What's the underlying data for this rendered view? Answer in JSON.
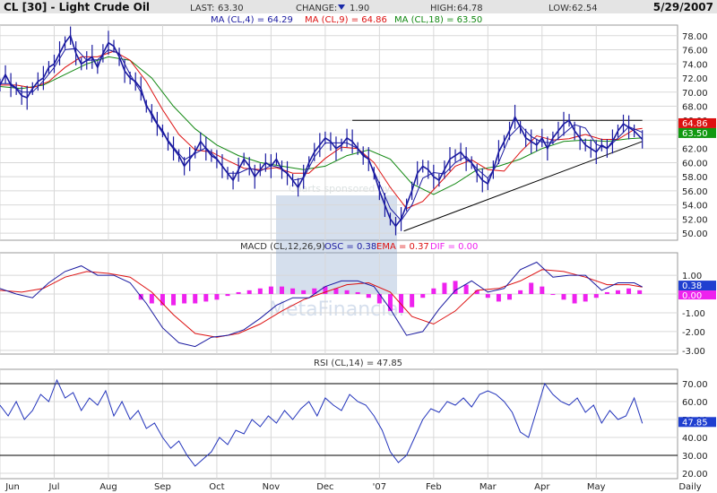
{
  "header": {
    "symbol_title": "CL [30] - Light Crude Oil",
    "last_label": "LAST:",
    "last_value": "63.30",
    "change_label": "CHANGE:",
    "change_value": "1.90",
    "change_direction": "down",
    "high_label": "HIGH:",
    "high_value": "64.78",
    "low_label": "LOW:",
    "low_value": "62.54",
    "date": "5/29/2007"
  },
  "watermark": {
    "sponsor_text": "Charts sponsored by:",
    "brand_text": "MetaFinancial"
  },
  "colors": {
    "background": "#ffffff",
    "grid": "#d8d8d8",
    "price": "#1a1aa0",
    "ma4": "#1a1aa0",
    "ma9": "#dd1111",
    "ma18": "#118811",
    "macd_hist": "#ee22ee",
    "rsi": "#2233bb",
    "tag_ma4": "#1f3fd0",
    "tag_ma9": "#dd1111",
    "tag_ma18": "#119911"
  },
  "chart_data": [
    {
      "type": "line",
      "panel": "price",
      "legend": {
        "ma4_text": "MA (CL,4) = 64.29",
        "ma9_text": "MA (CL,9) = 64.86",
        "ma18_text": "MA (CL,18) = 63.50"
      },
      "value_tags": {
        "ma4": "64.29",
        "ma9": "64.86",
        "ma18": "63.50"
      },
      "ylim": [
        49,
        79.5
      ],
      "y_ticks": [
        "50.00",
        "52.00",
        "54.00",
        "56.00",
        "58.00",
        "60.00",
        "62.00",
        "64.00",
        "66.00",
        "68.00",
        "70.00",
        "72.00",
        "74.00",
        "76.00",
        "78.00"
      ],
      "x_labels": [
        "Jun",
        "Jul",
        "Aug",
        "Sep",
        "Oct",
        "Nov",
        "Dec",
        "'07",
        "Feb",
        "Mar",
        "Apr",
        "May",
        "Daily"
      ],
      "x_label_months": [
        0,
        1,
        2,
        3,
        4,
        5,
        6,
        7,
        8,
        9,
        10,
        11,
        12.5
      ],
      "xlim": [
        0,
        12.5
      ],
      "grid": true,
      "series": [
        {
          "key": "price",
          "x": [
            0,
            0.1,
            0.2,
            0.3,
            0.4,
            0.5,
            0.6,
            0.7,
            0.8,
            0.9,
            1.0,
            1.1,
            1.2,
            1.3,
            1.4,
            1.5,
            1.6,
            1.7,
            1.8,
            1.9,
            2.0,
            2.1,
            2.2,
            2.3,
            2.4,
            2.5,
            2.6,
            2.7,
            2.8,
            2.9,
            3.0,
            3.1,
            3.2,
            3.3,
            3.4,
            3.5,
            3.6,
            3.7,
            3.8,
            3.9,
            4.0,
            4.1,
            4.2,
            4.3,
            4.4,
            4.5,
            4.6,
            4.7,
            4.8,
            4.9,
            5.0,
            5.1,
            5.2,
            5.3,
            5.4,
            5.5,
            5.6,
            5.7,
            5.8,
            5.9,
            6.0,
            6.1,
            6.2,
            6.3,
            6.4,
            6.5,
            6.6,
            6.7,
            6.8,
            6.9,
            7.0,
            7.1,
            7.2,
            7.3,
            7.4,
            7.5,
            7.6,
            7.7,
            7.8,
            7.9,
            8.0,
            8.1,
            8.2,
            8.3,
            8.4,
            8.5,
            8.6,
            8.7,
            8.8,
            8.9,
            9.0,
            9.1,
            9.2,
            9.3,
            9.4,
            9.5,
            9.6,
            9.7,
            9.8,
            9.9,
            10.0,
            10.1,
            10.2,
            10.3,
            10.4,
            10.5,
            10.6,
            10.7,
            10.8,
            10.9,
            11.0,
            11.1,
            11.2,
            11.3,
            11.4,
            11.5,
            11.6,
            11.7,
            11.85
          ],
          "y": [
            71.0,
            72.5,
            71.0,
            70.5,
            69.5,
            69.2,
            70.5,
            71.5,
            72.0,
            73.5,
            74.0,
            75.5,
            77.0,
            78.0,
            75.5,
            74.0,
            74.5,
            75.0,
            73.5,
            75.5,
            77.0,
            76.5,
            75.0,
            73.0,
            72.0,
            71.5,
            70.5,
            68.0,
            67.0,
            65.5,
            64.5,
            63.0,
            62.0,
            61.0,
            59.5,
            60.5,
            61.5,
            63.0,
            62.0,
            61.0,
            60.5,
            59.5,
            58.5,
            57.5,
            59.0,
            60.5,
            59.5,
            58.0,
            59.0,
            60.0,
            59.5,
            60.5,
            59.0,
            58.5,
            57.5,
            56.5,
            58.0,
            60.0,
            61.5,
            62.5,
            63.5,
            63.0,
            62.0,
            62.5,
            63.5,
            63.0,
            62.0,
            61.0,
            60.5,
            58.5,
            56.0,
            54.0,
            52.0,
            51.0,
            52.0,
            54.0,
            56.0,
            58.5,
            59.5,
            59.0,
            58.0,
            57.5,
            59.0,
            60.5,
            61.0,
            61.5,
            60.5,
            60.0,
            58.5,
            57.5,
            57.0,
            59.0,
            61.5,
            63.0,
            64.5,
            66.5,
            65.0,
            63.5,
            63.0,
            62.5,
            63.5,
            62.0,
            63.5,
            64.5,
            65.5,
            66.0,
            64.5,
            63.5,
            62.5,
            62.0,
            61.5,
            62.5,
            62.0,
            63.0,
            64.5,
            65.5,
            65.0,
            64.5,
            63.3
          ]
        },
        {
          "key": "ma4",
          "x": [
            0,
            0.2,
            0.4,
            0.6,
            0.8,
            1.0,
            1.2,
            1.4,
            1.6,
            1.8,
            2.0,
            2.2,
            2.4,
            2.6,
            2.8,
            3.0,
            3.2,
            3.4,
            3.6,
            3.8,
            4.0,
            4.2,
            4.4,
            4.6,
            4.8,
            5.0,
            5.2,
            5.4,
            5.6,
            5.8,
            6.0,
            6.2,
            6.4,
            6.6,
            6.8,
            7.0,
            7.2,
            7.4,
            7.6,
            7.8,
            8.0,
            8.2,
            8.4,
            8.6,
            8.8,
            9.0,
            9.2,
            9.4,
            9.6,
            9.8,
            10.0,
            10.2,
            10.4,
            10.6,
            10.8,
            11.0,
            11.2,
            11.4,
            11.6,
            11.85
          ],
          "y": [
            71.2,
            71.2,
            70.0,
            70.0,
            71.6,
            73.5,
            76.0,
            76.2,
            74.5,
            74.6,
            76.0,
            75.5,
            72.5,
            70.0,
            66.6,
            64.2,
            62.2,
            60.4,
            61.3,
            62.1,
            60.6,
            58.5,
            58.5,
            59.2,
            58.8,
            59.6,
            59.2,
            57.5,
            57.8,
            60.8,
            62.8,
            62.8,
            62.8,
            62.0,
            60.4,
            57.0,
            53.5,
            51.8,
            54.0,
            57.8,
            58.6,
            58.4,
            60.0,
            60.9,
            59.1,
            57.8,
            60.0,
            63.7,
            65.3,
            63.7,
            62.9,
            62.8,
            64.1,
            65.4,
            64.9,
            62.6,
            62.0,
            63.5,
            65.1,
            64.29
          ]
        },
        {
          "key": "ma9",
          "x": [
            0,
            0.3,
            0.6,
            0.9,
            1.2,
            1.5,
            1.8,
            2.1,
            2.4,
            2.7,
            3.0,
            3.3,
            3.6,
            3.9,
            4.2,
            4.5,
            4.8,
            5.1,
            5.4,
            5.7,
            6.0,
            6.3,
            6.6,
            6.9,
            7.2,
            7.5,
            7.8,
            8.1,
            8.4,
            8.7,
            9.0,
            9.3,
            9.6,
            9.9,
            10.2,
            10.5,
            10.8,
            11.1,
            11.4,
            11.7,
            11.85
          ],
          "y": [
            71.0,
            71.0,
            70.6,
            71.5,
            73.5,
            75.0,
            75.0,
            75.8,
            74.5,
            71.5,
            67.5,
            64.0,
            61.8,
            61.5,
            60.3,
            59.2,
            59.0,
            59.3,
            58.5,
            58.5,
            60.6,
            62.2,
            62.0,
            60.0,
            56.5,
            53.5,
            54.5,
            57.0,
            59.5,
            60.4,
            59.0,
            58.8,
            61.5,
            63.8,
            63.2,
            63.4,
            64.0,
            63.3,
            63.3,
            64.7,
            64.86
          ]
        },
        {
          "key": "ma18",
          "x": [
            0,
            0.4,
            0.8,
            1.2,
            1.6,
            2.0,
            2.4,
            2.8,
            3.2,
            3.6,
            4.0,
            4.4,
            4.8,
            5.2,
            5.6,
            6.0,
            6.4,
            6.8,
            7.2,
            7.6,
            8.0,
            8.4,
            8.8,
            9.2,
            9.6,
            10.0,
            10.4,
            10.8,
            11.2,
            11.6,
            11.85
          ],
          "y": [
            70.8,
            70.5,
            71.0,
            72.5,
            74.0,
            75.0,
            74.5,
            72.0,
            68.0,
            64.8,
            62.5,
            61.0,
            60.0,
            59.5,
            59.0,
            59.5,
            61.0,
            61.8,
            60.5,
            57.0,
            55.5,
            57.0,
            59.0,
            59.5,
            60.5,
            62.0,
            63.0,
            63.2,
            63.0,
            63.4,
            63.5
          ]
        }
      ],
      "annotations": {
        "resistance_line": {
          "x": [
            6.5,
            11.85
          ],
          "y": [
            66.0,
            66.0
          ]
        },
        "trend_line": {
          "x": [
            7.45,
            11.85
          ],
          "y": [
            50.3,
            63.0
          ]
        }
      }
    },
    {
      "type": "line",
      "panel": "macd",
      "legend": {
        "title_text": "MACD (CL,12,26,9)",
        "osc_text": "OSC = 0.38",
        "ema_text": "EMA = 0.37",
        "dif_text": "DIF = 0.00"
      },
      "value_tags": {
        "osc": "0.38",
        "dif": "0.00"
      },
      "ylim": [
        -3.2,
        2.2
      ],
      "y_ticks": [
        "1.00",
        "0.00",
        "-1.00",
        "-2.00",
        "-3.00"
      ],
      "y_tick_values": [
        1,
        0,
        -1,
        -2,
        -3
      ],
      "xlim": [
        0,
        12.5
      ],
      "grid": true,
      "series": [
        {
          "key": "osc",
          "x": [
            0,
            0.3,
            0.6,
            0.9,
            1.2,
            1.5,
            1.8,
            2.1,
            2.4,
            2.7,
            3.0,
            3.3,
            3.6,
            3.9,
            4.2,
            4.5,
            4.8,
            5.1,
            5.4,
            5.7,
            6.0,
            6.3,
            6.6,
            6.9,
            7.2,
            7.5,
            7.8,
            8.1,
            8.4,
            8.7,
            9.0,
            9.3,
            9.6,
            9.9,
            10.2,
            10.5,
            10.8,
            11.1,
            11.4,
            11.7,
            11.85
          ],
          "y": [
            0.3,
            0.0,
            -0.2,
            0.6,
            1.2,
            1.5,
            1.0,
            1.0,
            0.6,
            -0.5,
            -1.8,
            -2.6,
            -2.8,
            -2.3,
            -2.2,
            -1.9,
            -1.3,
            -0.6,
            -0.2,
            -0.2,
            0.4,
            0.7,
            0.7,
            0.4,
            -0.8,
            -2.2,
            -2.0,
            -0.8,
            0.2,
            0.7,
            0.1,
            0.3,
            1.3,
            1.7,
            0.9,
            1.0,
            1.0,
            0.2,
            0.6,
            0.6,
            0.38
          ]
        },
        {
          "key": "ema",
          "x": [
            0,
            0.4,
            0.8,
            1.2,
            1.6,
            2.0,
            2.4,
            2.8,
            3.2,
            3.6,
            4.0,
            4.4,
            4.8,
            5.2,
            5.6,
            6.0,
            6.4,
            6.8,
            7.2,
            7.6,
            8.0,
            8.4,
            8.8,
            9.2,
            9.6,
            10.0,
            10.4,
            10.8,
            11.2,
            11.6,
            11.85
          ],
          "y": [
            0.2,
            0.1,
            0.3,
            0.9,
            1.2,
            1.1,
            0.9,
            0.1,
            -1.1,
            -2.1,
            -2.3,
            -2.1,
            -1.6,
            -0.9,
            -0.3,
            0.1,
            0.5,
            0.6,
            0.1,
            -1.2,
            -1.6,
            -0.9,
            0.2,
            0.3,
            0.7,
            1.3,
            1.2,
            0.9,
            0.5,
            0.5,
            0.37
          ]
        },
        {
          "key": "dif",
          "x": [
            2.6,
            2.8,
            3.0,
            3.2,
            3.4,
            3.6,
            3.8,
            4.0,
            4.2,
            4.4,
            4.6,
            4.8,
            5.0,
            5.2,
            5.4,
            5.6,
            5.8,
            6.0,
            6.2,
            6.4,
            6.6,
            6.8,
            7.0,
            7.2,
            7.4,
            7.6,
            7.8,
            8.0,
            8.2,
            8.4,
            8.6,
            8.8,
            9.0,
            9.2,
            9.4,
            9.6,
            9.8,
            10.0,
            10.2,
            10.4,
            10.6,
            10.8,
            11.0,
            11.2,
            11.4,
            11.6,
            11.8
          ],
          "y": [
            -0.3,
            -0.5,
            -0.6,
            -0.6,
            -0.5,
            -0.5,
            -0.4,
            -0.3,
            -0.1,
            0.1,
            0.2,
            0.3,
            0.4,
            0.4,
            0.3,
            0.2,
            0.3,
            0.4,
            0.3,
            0.2,
            0.1,
            -0.2,
            -0.5,
            -0.9,
            -1.0,
            -0.7,
            -0.2,
            0.3,
            0.6,
            0.7,
            0.5,
            0.2,
            -0.2,
            -0.4,
            -0.3,
            0.2,
            0.6,
            0.4,
            0.0,
            -0.3,
            -0.5,
            -0.4,
            -0.2,
            0.1,
            0.2,
            0.3,
            0.2
          ]
        }
      ]
    },
    {
      "type": "line",
      "panel": "rsi",
      "legend": {
        "title_text": "RSI (CL,14) = 47.85"
      },
      "value_tags": {
        "rsi": "47.85"
      },
      "ylim": [
        17,
        78
      ],
      "y_ticks": [
        "70.00",
        "60.00",
        "50.00",
        "40.00",
        "30.00",
        "20.00"
      ],
      "y_tick_values": [
        70,
        60,
        50,
        40,
        30,
        20
      ],
      "reference_lines": [
        70,
        30
      ],
      "xlim": [
        0,
        12.5
      ],
      "grid": true,
      "series": [
        {
          "key": "rsi",
          "x": [
            0,
            0.15,
            0.3,
            0.45,
            0.6,
            0.75,
            0.9,
            1.05,
            1.2,
            1.35,
            1.5,
            1.65,
            1.8,
            1.95,
            2.1,
            2.25,
            2.4,
            2.55,
            2.7,
            2.85,
            3.0,
            3.15,
            3.3,
            3.45,
            3.6,
            3.75,
            3.9,
            4.05,
            4.2,
            4.35,
            4.5,
            4.65,
            4.8,
            4.95,
            5.1,
            5.25,
            5.4,
            5.55,
            5.7,
            5.85,
            6.0,
            6.15,
            6.3,
            6.45,
            6.6,
            6.75,
            6.9,
            7.05,
            7.2,
            7.35,
            7.5,
            7.65,
            7.8,
            7.95,
            8.1,
            8.25,
            8.4,
            8.55,
            8.7,
            8.85,
            9.0,
            9.15,
            9.3,
            9.45,
            9.6,
            9.75,
            9.9,
            10.05,
            10.2,
            10.35,
            10.5,
            10.65,
            10.8,
            10.95,
            11.1,
            11.25,
            11.4,
            11.55,
            11.7,
            11.85
          ],
          "y": [
            58,
            52,
            60,
            50,
            55,
            64,
            60,
            72,
            62,
            65,
            55,
            62,
            58,
            66,
            52,
            60,
            50,
            55,
            45,
            48,
            40,
            34,
            38,
            30,
            24,
            28,
            32,
            40,
            36,
            44,
            42,
            50,
            46,
            52,
            48,
            55,
            50,
            56,
            60,
            52,
            62,
            58,
            55,
            64,
            60,
            58,
            52,
            44,
            32,
            26,
            30,
            40,
            50,
            56,
            54,
            60,
            58,
            62,
            57,
            64,
            66,
            64,
            60,
            54,
            43,
            40,
            55,
            70,
            64,
            60,
            58,
            62,
            54,
            58,
            48,
            55,
            50,
            52,
            62,
            47.85
          ]
        }
      ]
    }
  ]
}
